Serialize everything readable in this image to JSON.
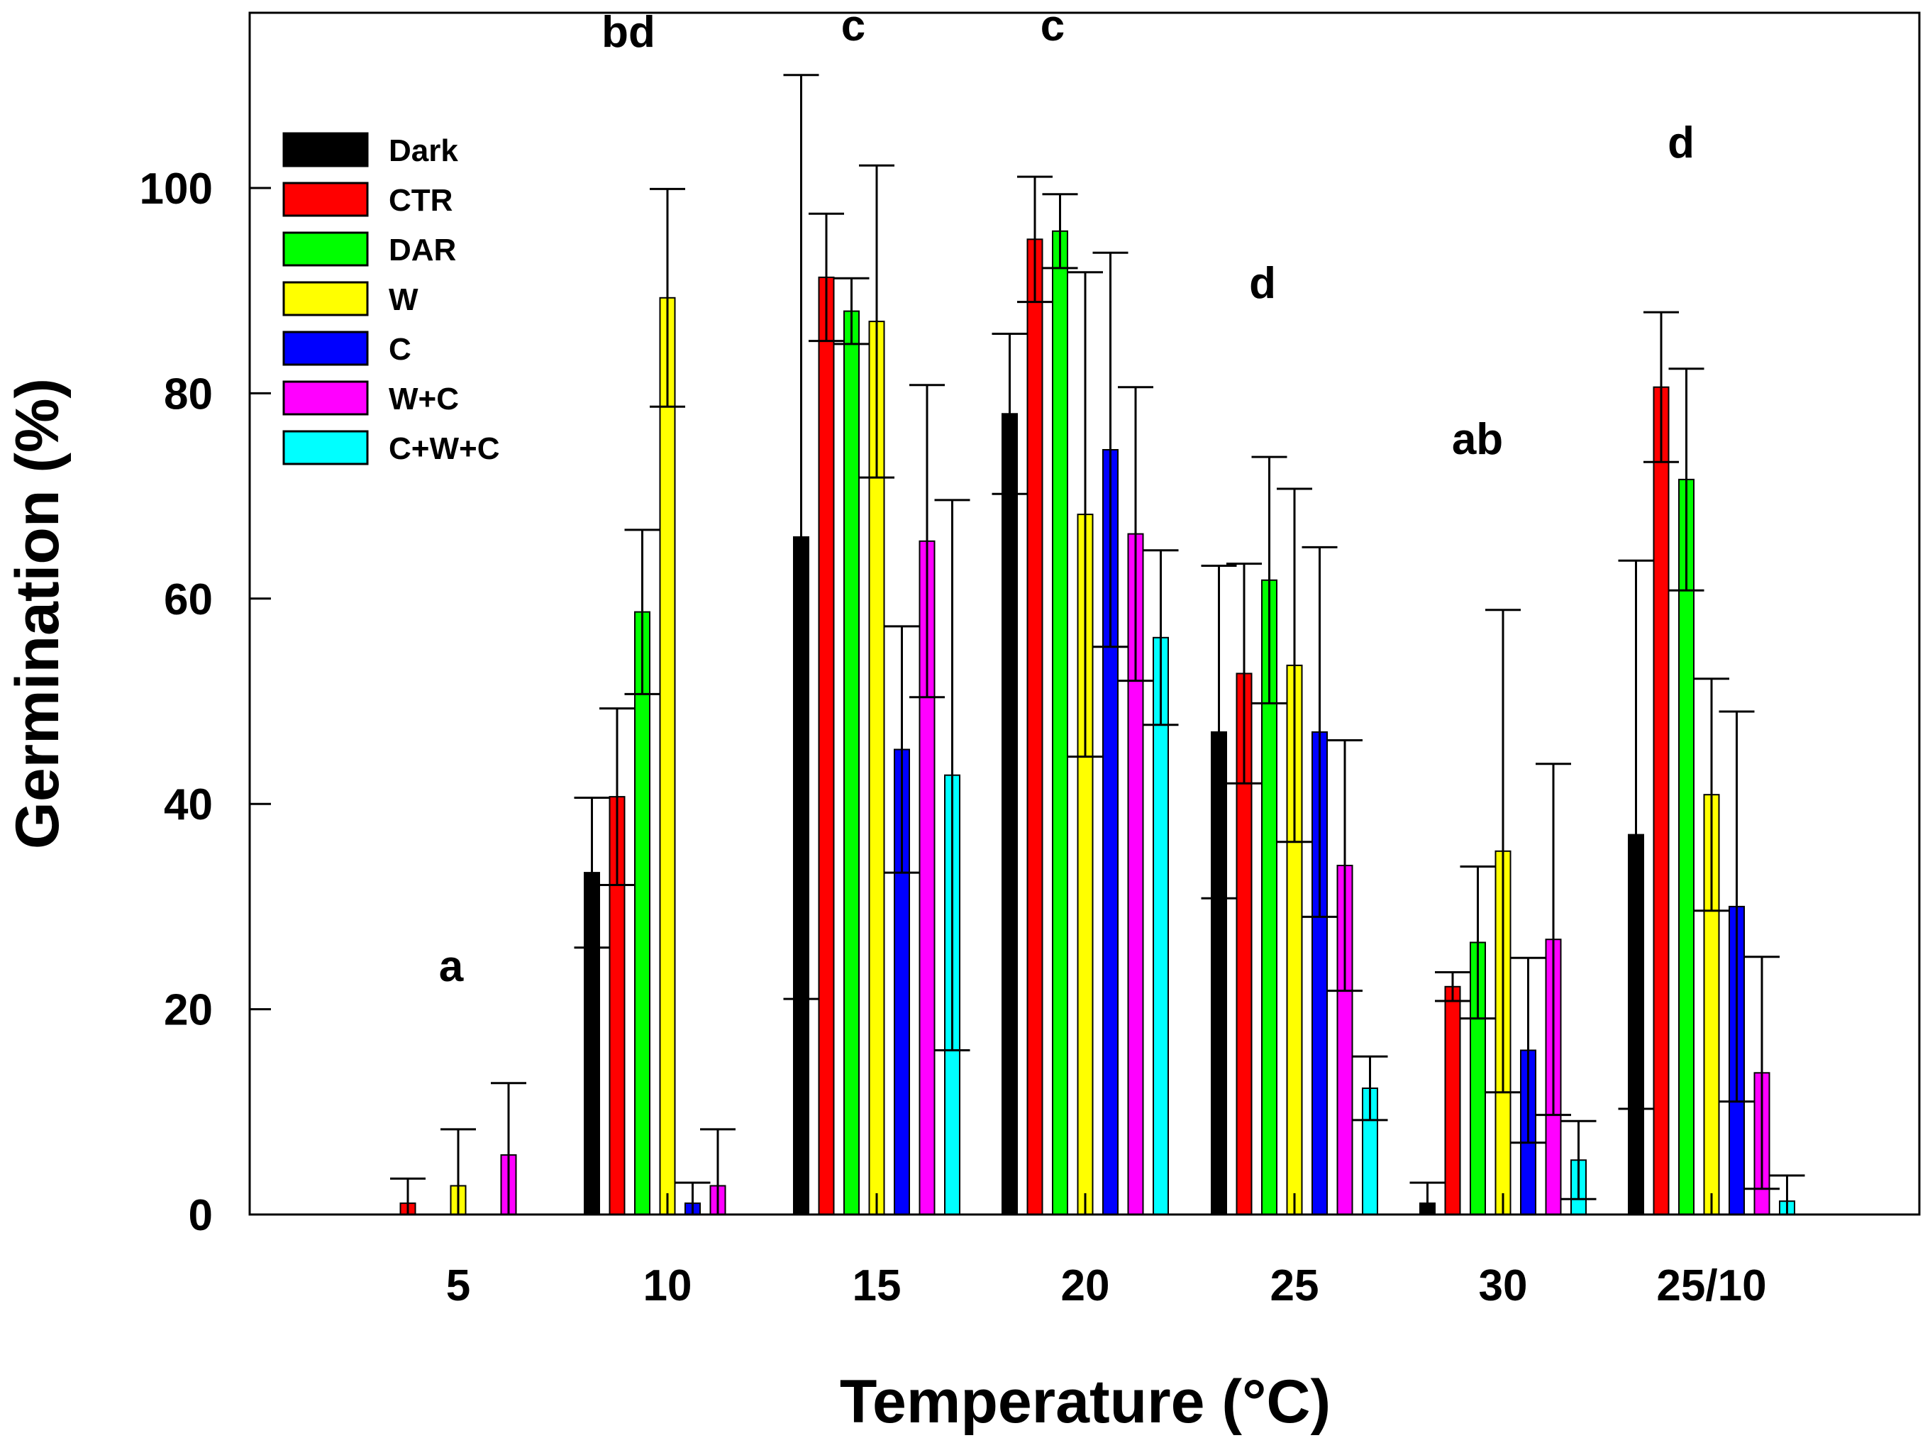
{
  "chart_data": {
    "type": "bar",
    "title": "",
    "xlabel": "Temperature (°C)",
    "ylabel": "Germination (%)",
    "ylim": [
      0,
      120
    ],
    "yticks": [
      0,
      20,
      40,
      60,
      80,
      100
    ],
    "grid": false,
    "legend_position": "top-left",
    "categories": [
      "5",
      "10",
      "15",
      "20",
      "25",
      "30",
      "25/10"
    ],
    "group_letters": [
      "a",
      "bd",
      "c",
      "c",
      "d",
      "ab",
      "d"
    ],
    "series": [
      {
        "name": "Dark",
        "color": "#000000",
        "values": [
          0,
          33.3,
          66,
          78,
          47,
          1.1,
          37
        ],
        "errors": [
          0,
          7.3,
          45,
          7.8,
          16.2,
          2,
          26.7
        ]
      },
      {
        "name": "CTR",
        "color": "#ff0000",
        "values": [
          1.1,
          40.7,
          91.3,
          95,
          52.7,
          22.2,
          80.6
        ],
        "errors": [
          2.4,
          8.6,
          6.2,
          6.1,
          10.7,
          1.4,
          7.3
        ]
      },
      {
        "name": "DAR",
        "color": "#00ff00",
        "values": [
          0,
          58.7,
          88,
          95.8,
          61.8,
          26.5,
          71.6
        ],
        "errors": [
          0,
          8,
          3.2,
          3.6,
          12,
          7.4,
          10.8
        ]
      },
      {
        "name": "W",
        "color": "#ffff00",
        "values": [
          2.8,
          89.3,
          87,
          68.2,
          53.5,
          35.4,
          40.9
        ],
        "errors": [
          5.5,
          10.6,
          15.2,
          23.6,
          17.2,
          23.5,
          11.3
        ]
      },
      {
        "name": "C",
        "color": "#0000ff",
        "values": [
          0,
          1.1,
          45.3,
          74.5,
          47,
          16,
          30
        ],
        "errors": [
          0,
          2,
          12,
          19.2,
          18,
          9,
          19
        ]
      },
      {
        "name": "W+C",
        "color": "#ff00ff",
        "values": [
          5.8,
          2.8,
          65.6,
          66.3,
          34,
          26.8,
          13.8
        ],
        "errors": [
          7,
          5.5,
          15.2,
          14.3,
          12.2,
          17.1,
          11.3
        ]
      },
      {
        "name": "C+W+C",
        "color": "#00ffff",
        "values": [
          0,
          0,
          42.8,
          56.2,
          12.3,
          5.3,
          1.3
        ],
        "errors": [
          0,
          0,
          26.8,
          8.5,
          3.1,
          3.8,
          2.5
        ]
      }
    ]
  }
}
